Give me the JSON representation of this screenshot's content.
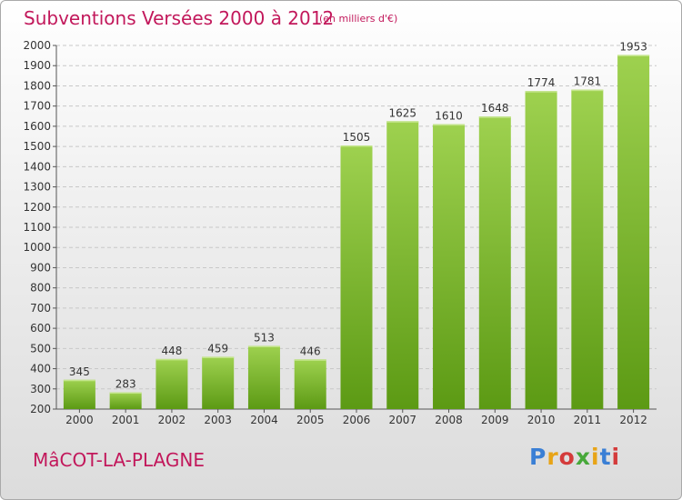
{
  "header": {
    "title": "Subventions Versées 2000 à 2012",
    "subtitle": "(en milliers d'€)"
  },
  "footer": {
    "commune": "MâCOT-LA-PLAGNE",
    "brand": "Proxiti"
  },
  "colors": {
    "accent": "#c2185b",
    "bar_top": "#9ed14f",
    "bar_bottom": "#5c9a14",
    "grid": "#c8c8c8"
  },
  "chart_data": {
    "type": "bar",
    "title": "Subventions Versées 2000 à 2012",
    "subtitle": "(en milliers d'€)",
    "xlabel": "",
    "ylabel": "",
    "categories": [
      "2000",
      "2001",
      "2002",
      "2003",
      "2004",
      "2005",
      "2006",
      "2007",
      "2008",
      "2009",
      "2010",
      "2011",
      "2012"
    ],
    "values": [
      345,
      283,
      448,
      459,
      513,
      446,
      1505,
      1625,
      1610,
      1648,
      1774,
      1781,
      1953
    ],
    "ylim": [
      200,
      2000
    ],
    "yticks": [
      200,
      300,
      400,
      500,
      600,
      700,
      800,
      900,
      1000,
      1100,
      1200,
      1300,
      1400,
      1500,
      1600,
      1700,
      1800,
      1900,
      2000
    ],
    "grid": true,
    "grid_style": "dashed-horizontal",
    "data_labels": true
  }
}
